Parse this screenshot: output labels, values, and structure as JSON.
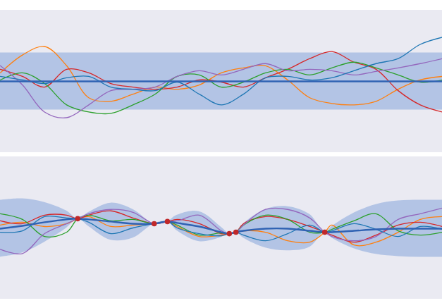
{
  "chart_data": [
    {
      "type": "line",
      "tick_labels": false,
      "xlim": [
        0,
        10
      ],
      "ylim": [
        -5,
        5
      ],
      "x": [
        0,
        0.5,
        1,
        1.5,
        2,
        2.5,
        3,
        3.5,
        4,
        4.5,
        5,
        5.5,
        6,
        6.5,
        7,
        7.5,
        8,
        8.5,
        9,
        9.5,
        10
      ],
      "band": {
        "color": "#a9bde3",
        "lower": [
          -2,
          -2,
          -2,
          -2,
          -2,
          -2,
          -2,
          -2,
          -2,
          -2,
          -2,
          -2,
          -2,
          -2,
          -2,
          -2,
          -2,
          -2,
          -2,
          -2,
          -2
        ],
        "upper": [
          2,
          2,
          2,
          2,
          2,
          2,
          2,
          2,
          2,
          2,
          2,
          2,
          2,
          2,
          2,
          2,
          2,
          2,
          2,
          2,
          2
        ]
      },
      "mean": {
        "color": "#2f62b3",
        "values": [
          0,
          0,
          0,
          0,
          0,
          0,
          0,
          0,
          0,
          0,
          0,
          0,
          0,
          0,
          0,
          0,
          0,
          0,
          0,
          0,
          0
        ]
      },
      "series": [
        {
          "color": "#ff7f0e",
          "values": [
            0.6,
            1.85,
            2.45,
            1.1,
            -1.15,
            -1.4,
            -0.9,
            -0.4,
            -0.55,
            -0.25,
            0.6,
            0.95,
            1.1,
            0.1,
            -1.15,
            -1.55,
            -1.65,
            -1.4,
            -0.55,
            0.1,
            0.35
          ]
        },
        {
          "color": "#d62728",
          "values": [
            0.85,
            0.35,
            -0.4,
            0.85,
            0.6,
            -0.15,
            -0.4,
            -0.55,
            -0.4,
            0.1,
            -0.05,
            -0.4,
            0.25,
            0.85,
            1.6,
            2.1,
            1.35,
            0.85,
            -0.65,
            -1.65,
            -2.15
          ]
        },
        {
          "color": "#2ca02c",
          "values": [
            0.1,
            0.6,
            -0.15,
            -1.65,
            -2.15,
            -2.25,
            -1.65,
            -0.9,
            0.35,
            0.45,
            -0.4,
            -0.05,
            0.6,
            0.85,
            0.45,
            0.95,
            1.35,
            0.95,
            0.45,
            -0.05,
            0.1
          ]
        },
        {
          "color": "#9467bd",
          "values": [
            1.1,
            -0.25,
            -2.15,
            -2.55,
            -1.65,
            -0.65,
            -0.55,
            -0.4,
            0.35,
            0.75,
            0.45,
            0.85,
            1.25,
            0.75,
            0.85,
            0.75,
            0.45,
            0.7,
            0.95,
            1.25,
            1.6
          ]
        },
        {
          "color": "#1f77b4",
          "values": [
            0.35,
            0.1,
            -0.15,
            0.25,
            0.35,
            -0.4,
            -0.55,
            -0.65,
            -0.05,
            -0.9,
            -1.65,
            -0.9,
            0.25,
            0.35,
            0.1,
            0.25,
            0.75,
            1.25,
            1.6,
            2.6,
            3.1
          ]
        }
      ]
    },
    {
      "type": "line",
      "tick_labels": false,
      "xlim": [
        0,
        10
      ],
      "ylim": [
        -5,
        5
      ],
      "x": [
        0,
        0.5,
        1,
        1.5,
        1.75,
        2,
        2.5,
        3,
        3.48,
        3.78,
        4,
        4.5,
        5,
        5.18,
        5.33,
        5.5,
        6,
        6.5,
        7,
        7.34,
        7.5,
        8,
        8.5,
        9,
        9.5,
        10
      ],
      "band": {
        "color": "#a9bde3",
        "lower": [
          -2.05,
          -1.75,
          -1.0,
          0.0,
          0.65,
          0.1,
          -0.85,
          -0.7,
          0.3,
          0.45,
          -0.2,
          -0.95,
          -0.65,
          -0.4,
          -0.3,
          -0.7,
          -1.4,
          -1.6,
          -1.35,
          -0.3,
          -0.7,
          -1.45,
          -1.85,
          -2.0,
          -2.05,
          -2.05
        ],
        "upper": [
          1.95,
          2.05,
          1.8,
          1.2,
          0.65,
          1.1,
          1.75,
          1.3,
          0.3,
          0.45,
          0.9,
          1.15,
          0.05,
          -0.4,
          -0.3,
          0.3,
          1.3,
          1.5,
          0.95,
          -0.3,
          0.1,
          1.05,
          1.65,
          1.9,
          1.95,
          1.95
        ]
      },
      "mean": {
        "color": "#2f62b3",
        "values": [
          -0.05,
          0.15,
          0.4,
          0.6,
          0.65,
          0.6,
          0.45,
          0.3,
          0.3,
          0.45,
          0.35,
          0.1,
          -0.3,
          -0.4,
          -0.3,
          -0.2,
          -0.05,
          -0.05,
          -0.2,
          -0.3,
          -0.3,
          -0.2,
          -0.1,
          -0.05,
          -0.05,
          -0.05
        ]
      },
      "series": [
        {
          "color": "#ff7f0e",
          "values": [
            0.2,
            0.4,
            0.1,
            0.3,
            0.65,
            0.8,
            0.1,
            0.2,
            0.3,
            0.45,
            0.1,
            -0.6,
            -0.5,
            -0.4,
            -0.3,
            -0.2,
            -0.3,
            -0.9,
            -1.0,
            -0.3,
            0.2,
            -1.2,
            -1.0,
            -0.3,
            0.6,
            0.8
          ]
        },
        {
          "color": "#d62728",
          "values": [
            0.5,
            0.3,
            0.9,
            0.9,
            0.65,
            0.9,
            1.2,
            0.7,
            0.3,
            0.45,
            0.6,
            0.3,
            -0.4,
            -0.4,
            -0.3,
            0.3,
            0.8,
            0.6,
            0.1,
            -0.3,
            -0.5,
            -1.0,
            -0.5,
            0.2,
            0.4,
            0.1
          ]
        },
        {
          "color": "#2ca02c",
          "values": [
            1.0,
            0.6,
            -0.6,
            -0.3,
            0.65,
            0.9,
            0.5,
            0.6,
            0.3,
            0.45,
            0.2,
            -0.5,
            -0.35,
            -0.4,
            -0.3,
            0.2,
            0.9,
            0.6,
            -0.3,
            -0.3,
            -0.1,
            0.5,
            1.0,
            -0.2,
            -0.5,
            -0.3
          ]
        },
        {
          "color": "#9467bd",
          "values": [
            -1.5,
            -1.8,
            -0.4,
            0.3,
            0.65,
            1.0,
            1.3,
            1.1,
            0.3,
            0.45,
            0.5,
            0.9,
            -0.2,
            -0.4,
            -0.3,
            0.2,
            1.3,
            1.3,
            0.7,
            -0.3,
            -0.6,
            -0.9,
            -0.6,
            0.6,
            1.0,
            1.4
          ]
        },
        {
          "color": "#1f77b4",
          "values": [
            -0.3,
            -0.2,
            0.8,
            0.7,
            0.65,
            0.4,
            -0.4,
            0.0,
            0.3,
            0.45,
            0.0,
            -0.4,
            -0.55,
            -0.4,
            -0.3,
            -0.5,
            -0.9,
            -0.4,
            0.2,
            -0.3,
            -0.2,
            0.3,
            -0.1,
            -0.6,
            0.1,
            -0.1
          ]
        }
      ],
      "points": {
        "color": "#c0282a",
        "x": [
          1.75,
          3.48,
          3.78,
          5.18,
          5.33,
          7.34
        ],
        "y": [
          0.65,
          0.3,
          0.45,
          -0.4,
          -0.3,
          -0.3
        ]
      }
    }
  ]
}
